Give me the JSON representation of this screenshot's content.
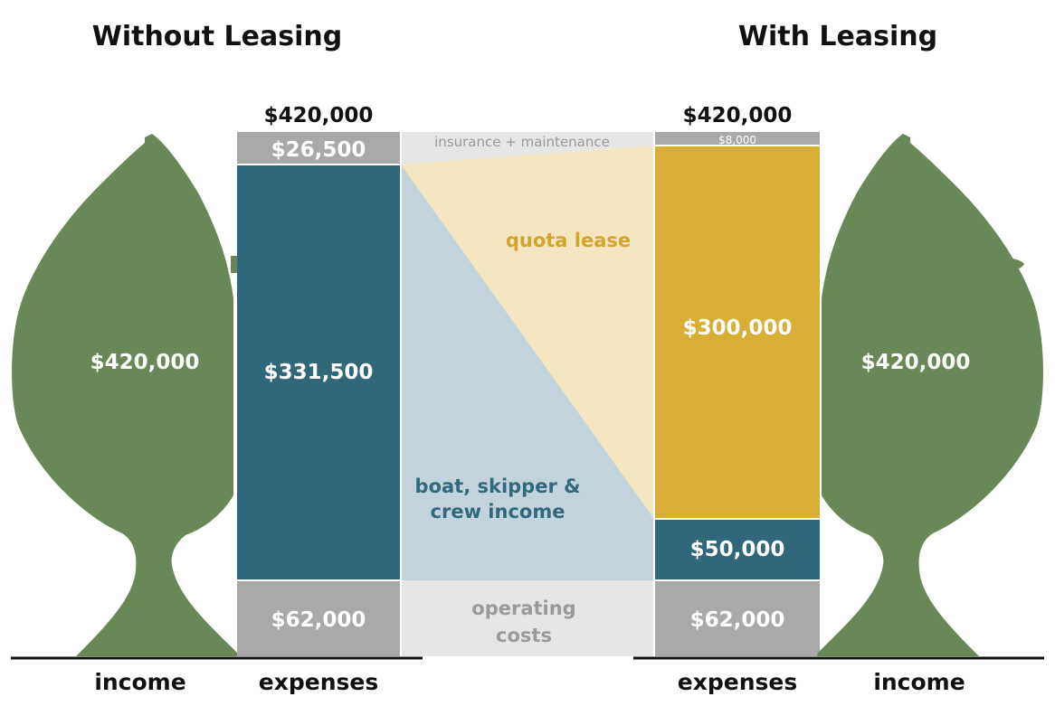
{
  "titles": {
    "left": "Without Leasing",
    "right": "With Leasing"
  },
  "left": {
    "total": "$420,000",
    "income": "$420,000",
    "insurance": "$26,500",
    "crew": "$331,500",
    "operating": "$62,000"
  },
  "right": {
    "total": "$420,000",
    "income": "$420,000",
    "insurance": "$8,000",
    "quota": "$300,000",
    "crew": "$50,000",
    "operating": "$62,000"
  },
  "flows": {
    "insurance": "insurance + maintenance",
    "quota": "quota lease",
    "crew_line1": "boat, skipper &",
    "crew_line2": "crew income",
    "operating_line1": "operating",
    "operating_line2": "costs"
  },
  "axis": {
    "income_left": "income",
    "expenses_left": "expenses",
    "expenses_right": "expenses",
    "income_right": "income"
  },
  "colors": {
    "fish": "#6a8758",
    "crew": "#30687b",
    "quota": "#d8ae34",
    "grey": "#a9a9a9",
    "quota_flow": "#f3e6c0",
    "crew_flow": "#c3d3db",
    "grey_flow": "#e6e6e6"
  }
}
